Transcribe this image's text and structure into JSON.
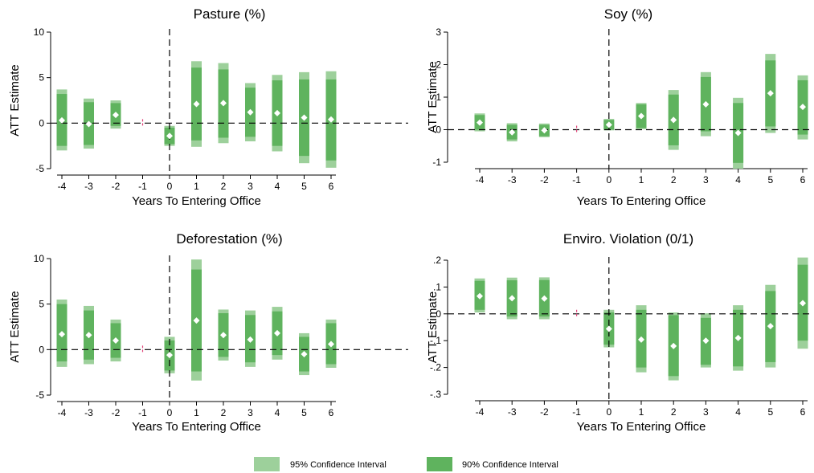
{
  "colors": {
    "ci95": "#9dd09b",
    "ci90": "#5fb35e",
    "point": "#ffffff",
    "ref": "#000000",
    "omitted": "#e0457a"
  },
  "legend": {
    "ci95_label": "95% Confidence Interval",
    "ci90_label": "90% Confidence Interval"
  },
  "chart_data": [
    {
      "type": "event-study",
      "title": "Pasture (%)",
      "xlabel": "Years To Entering Office",
      "ylabel": "ATT Estimate",
      "ylim": [
        -5,
        10
      ],
      "yticks": [
        -5,
        0,
        5,
        10
      ],
      "yticklabels": [
        "-5",
        "0",
        "5",
        "10"
      ],
      "xticks": [
        -4,
        -3,
        -2,
        -1,
        0,
        1,
        2,
        3,
        4,
        5,
        6
      ],
      "xticklabels": [
        "-4",
        "-3",
        "-2",
        "-1",
        "0",
        "1",
        "2",
        "3",
        "4",
        "5",
        "6"
      ],
      "omitted_x": -1,
      "points": [
        {
          "x": -4,
          "est": 0.3,
          "ci90": [
            -2.5,
            3.2
          ],
          "ci95": [
            -3.0,
            3.7
          ]
        },
        {
          "x": -3,
          "est": -0.1,
          "ci90": [
            -2.4,
            2.3
          ],
          "ci95": [
            -2.8,
            2.7
          ]
        },
        {
          "x": -2,
          "est": 0.9,
          "ci90": [
            -0.3,
            2.2
          ],
          "ci95": [
            -0.6,
            2.5
          ]
        },
        {
          "x": 0,
          "est": -1.4,
          "ci90": [
            -2.3,
            -0.5
          ],
          "ci95": [
            -2.5,
            -0.3
          ]
        },
        {
          "x": 1,
          "est": 2.1,
          "ci90": [
            -1.9,
            6.1
          ],
          "ci95": [
            -2.6,
            6.8
          ]
        },
        {
          "x": 2,
          "est": 2.2,
          "ci90": [
            -1.6,
            5.9
          ],
          "ci95": [
            -2.2,
            6.6
          ]
        },
        {
          "x": 3,
          "est": 1.2,
          "ci90": [
            -1.5,
            3.9
          ],
          "ci95": [
            -2.0,
            4.4
          ]
        },
        {
          "x": 4,
          "est": 1.1,
          "ci90": [
            -2.5,
            4.7
          ],
          "ci95": [
            -3.1,
            5.3
          ]
        },
        {
          "x": 5,
          "est": 0.6,
          "ci90": [
            -3.6,
            4.8
          ],
          "ci95": [
            -4.4,
            5.6
          ]
        },
        {
          "x": 6,
          "est": 0.4,
          "ci90": [
            -4.1,
            4.8
          ],
          "ci95": [
            -4.9,
            5.7
          ]
        }
      ]
    },
    {
      "type": "event-study",
      "title": "Soy (%)",
      "xlabel": "Years To Entering Office",
      "ylabel": "ATT Estimate",
      "ylim": [
        -1,
        3
      ],
      "yticks": [
        -1,
        0,
        1,
        2,
        3
      ],
      "yticklabels": [
        "-1",
        "0",
        "1",
        "2",
        "3"
      ],
      "xticks": [
        -4,
        -3,
        -2,
        -1,
        0,
        1,
        2,
        3,
        4,
        5,
        6
      ],
      "xticklabels": [
        "-4",
        "-3",
        "-2",
        "-1",
        "0",
        "1",
        "2",
        "3",
        "4",
        "5",
        "6"
      ],
      "omitted_x": -1,
      "points": [
        {
          "x": -4,
          "est": 0.22,
          "ci90": [
            0.0,
            0.45
          ],
          "ci95": [
            -0.05,
            0.5
          ]
        },
        {
          "x": -3,
          "est": -0.08,
          "ci90": [
            -0.3,
            0.15
          ],
          "ci95": [
            -0.36,
            0.2
          ]
        },
        {
          "x": -2,
          "est": -0.02,
          "ci90": [
            -0.2,
            0.15
          ],
          "ci95": [
            -0.23,
            0.19
          ]
        },
        {
          "x": 0,
          "est": 0.15,
          "ci90": [
            0.0,
            0.3
          ],
          "ci95": [
            -0.02,
            0.33
          ]
        },
        {
          "x": 1,
          "est": 0.42,
          "ci90": [
            0.05,
            0.78
          ],
          "ci95": [
            0.02,
            0.82
          ]
        },
        {
          "x": 2,
          "est": 0.3,
          "ci90": [
            -0.48,
            1.08
          ],
          "ci95": [
            -0.62,
            1.22
          ]
        },
        {
          "x": 3,
          "est": 0.78,
          "ci90": [
            -0.05,
            1.62
          ],
          "ci95": [
            -0.2,
            1.77
          ]
        },
        {
          "x": 4,
          "est": -0.1,
          "ci90": [
            -1.02,
            0.82
          ],
          "ci95": [
            -1.2,
            0.98
          ]
        },
        {
          "x": 5,
          "est": 1.12,
          "ci90": [
            0.1,
            2.13
          ],
          "ci95": [
            -0.1,
            2.33
          ]
        },
        {
          "x": 6,
          "est": 0.7,
          "ci90": [
            -0.15,
            1.52
          ],
          "ci95": [
            -0.3,
            1.67
          ]
        }
      ]
    },
    {
      "type": "event-study",
      "title": "Deforestation (%)",
      "xlabel": "Years To Entering Office",
      "ylabel": "ATT Estimate",
      "ylim": [
        -5,
        10
      ],
      "yticks": [
        -5,
        0,
        5,
        10
      ],
      "yticklabels": [
        "-5",
        "0",
        "5",
        "10"
      ],
      "xticks": [
        -4,
        -3,
        -2,
        -1,
        0,
        1,
        2,
        3,
        4,
        5,
        6
      ],
      "xticklabels": [
        "-4",
        "-3",
        "-2",
        "-1",
        "0",
        "1",
        "2",
        "3",
        "4",
        "5",
        "6"
      ],
      "omitted_x": -1,
      "points": [
        {
          "x": -4,
          "est": 1.7,
          "ci90": [
            -1.3,
            5.0
          ],
          "ci95": [
            -1.9,
            5.5
          ]
        },
        {
          "x": -3,
          "est": 1.6,
          "ci90": [
            -1.1,
            4.3
          ],
          "ci95": [
            -1.6,
            4.8
          ]
        },
        {
          "x": -2,
          "est": 1.0,
          "ci90": [
            -0.9,
            2.9
          ],
          "ci95": [
            -1.3,
            3.3
          ]
        },
        {
          "x": 0,
          "est": -0.6,
          "ci90": [
            -2.3,
            1.0
          ],
          "ci95": [
            -2.6,
            1.4
          ]
        },
        {
          "x": 1,
          "est": 3.2,
          "ci90": [
            -2.4,
            8.8
          ],
          "ci95": [
            -3.4,
            9.9
          ]
        },
        {
          "x": 2,
          "est": 1.6,
          "ci90": [
            -0.8,
            4.0
          ],
          "ci95": [
            -1.2,
            4.4
          ]
        },
        {
          "x": 3,
          "est": 1.1,
          "ci90": [
            -1.4,
            3.8
          ],
          "ci95": [
            -1.9,
            4.3
          ]
        },
        {
          "x": 4,
          "est": 1.8,
          "ci90": [
            -0.6,
            4.2
          ],
          "ci95": [
            -1.1,
            4.7
          ]
        },
        {
          "x": 5,
          "est": -0.5,
          "ci90": [
            -2.4,
            1.4
          ],
          "ci95": [
            -2.8,
            1.8
          ]
        },
        {
          "x": 6,
          "est": 0.6,
          "ci90": [
            -1.6,
            2.9
          ],
          "ci95": [
            -2.0,
            3.3
          ]
        }
      ]
    },
    {
      "type": "event-study",
      "title": "Enviro. Violation (0/1)",
      "xlabel": "Years To Entering Office",
      "ylabel": "ATT Estimate",
      "ylim": [
        -0.3,
        0.2
      ],
      "yticks": [
        -0.3,
        -0.2,
        -0.1,
        0,
        0.1,
        0.2
      ],
      "yticklabels": [
        "-.3",
        "-.2",
        "-.1",
        "0",
        ".1",
        ".2"
      ],
      "xticks": [
        -4,
        -3,
        -2,
        -1,
        0,
        1,
        2,
        3,
        4,
        5,
        6
      ],
      "xticklabels": [
        "-4",
        "-3",
        "-2",
        "-1",
        "0",
        "1",
        "2",
        "3",
        "4",
        "5",
        "6"
      ],
      "omitted_x": -1,
      "points": [
        {
          "x": -4,
          "est": 0.066,
          "ci90": [
            0.015,
            0.123
          ],
          "ci95": [
            0.005,
            0.132
          ]
        },
        {
          "x": -3,
          "est": 0.058,
          "ci90": [
            -0.01,
            0.125
          ],
          "ci95": [
            -0.02,
            0.135
          ]
        },
        {
          "x": -2,
          "est": 0.057,
          "ci90": [
            -0.01,
            0.126
          ],
          "ci95": [
            -0.02,
            0.136
          ]
        },
        {
          "x": 0,
          "est": -0.056,
          "ci90": [
            -0.115,
            0.005
          ],
          "ci95": [
            -0.125,
            0.015
          ]
        },
        {
          "x": 1,
          "est": -0.096,
          "ci90": [
            -0.2,
            0.015
          ],
          "ci95": [
            -0.218,
            0.032
          ]
        },
        {
          "x": 2,
          "est": -0.12,
          "ci90": [
            -0.232,
            -0.005
          ],
          "ci95": [
            -0.248,
            0.005
          ]
        },
        {
          "x": 3,
          "est": -0.1,
          "ci90": [
            -0.19,
            -0.015
          ],
          "ci95": [
            -0.2,
            0.002
          ]
        },
        {
          "x": 4,
          "est": -0.09,
          "ci90": [
            -0.196,
            0.015
          ],
          "ci95": [
            -0.212,
            0.032
          ]
        },
        {
          "x": 5,
          "est": -0.046,
          "ci90": [
            -0.18,
            0.085
          ],
          "ci95": [
            -0.2,
            0.108
          ]
        },
        {
          "x": 6,
          "est": 0.04,
          "ci90": [
            -0.1,
            0.183
          ],
          "ci95": [
            -0.13,
            0.21
          ]
        }
      ]
    }
  ]
}
